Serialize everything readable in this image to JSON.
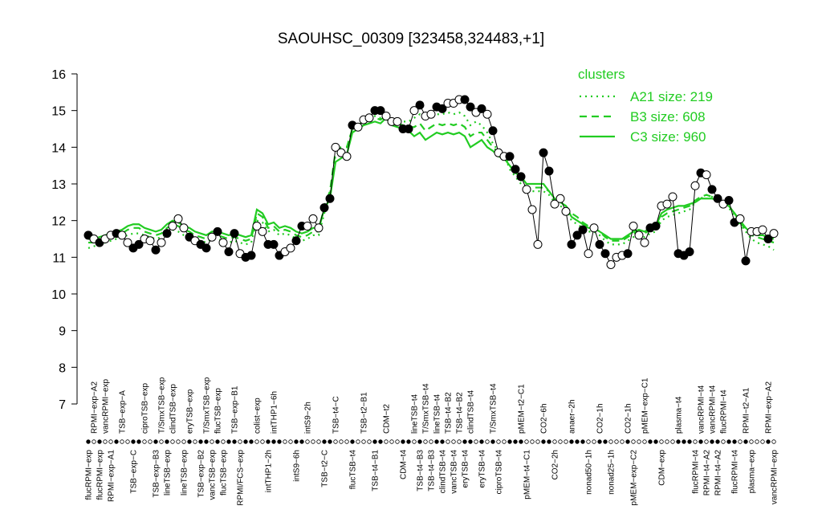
{
  "chart_data": {
    "type": "line",
    "title": "SAOUHSC_00309 [323458,324483,+1]",
    "ylim": [
      7,
      16
    ],
    "yticks": [
      7,
      8,
      9,
      10,
      11,
      12,
      13,
      14,
      15,
      16
    ],
    "legend_title": "clusters",
    "legend_position": "top-right",
    "categories": [
      "flucRPMI−exp",
      "RPMI−exp−A2",
      "flucRPMI−exp",
      "vancRPMI−exp",
      "RPMI−exp−A1",
      null,
      "TSB−exp−A",
      null,
      "TSB−exp−C",
      null,
      "ciproTSB−exp",
      null,
      "TSB−exp−B3",
      "T/SmxTSB−exp",
      "lineTSB−exp",
      "clindTSB−exp",
      null,
      "lineTSB−exp",
      "eryTSB−exp",
      null,
      "TSB−exp−B2",
      "T/SmxTSB−exp",
      "vancTSB−exp",
      "flucTSB−exp",
      "flucTSB−exp",
      null,
      "TSB−exp−B1",
      "RPMI/FCS−exp",
      null,
      null,
      "colist−exp",
      null,
      "intTHP1−2h",
      "intTHP1−6h",
      null,
      null,
      null,
      "intS9−6h",
      null,
      "intS9−2h",
      null,
      null,
      "TSB−t2−C",
      null,
      "TSB−t4−C",
      null,
      null,
      "flucTSB−t4",
      null,
      "TSB−t2−B1",
      null,
      "TSB−t4−B1",
      null,
      "CDM−t2",
      null,
      null,
      "CDM−t4",
      null,
      "lineTSB−t4",
      "TSB−t4−B3",
      "T/SmxTSB−t4",
      "TSB−t4−B3",
      "lineTSB−t4",
      "clindTSB−t4",
      "TSB−t4−B2",
      "vancTSB−t4",
      "TSB−t4−B2",
      "eryTSB−t4",
      "clindTSB−t4",
      null,
      "eryTSB−t4",
      null,
      "T/SmxTSB−t4",
      "ciproTSB−t4",
      null,
      null,
      null,
      "pMEM−t2−C1",
      "pMEM−t4−C1",
      null,
      null,
      "CO2−6h",
      null,
      "CO2−2h",
      null,
      null,
      "anaer−2h",
      null,
      null,
      "nonad50−1h",
      null,
      "CO2−1h",
      null,
      "nonad25−1h",
      null,
      null,
      "CO2−1h",
      "pMEM−exp−C2",
      null,
      "pMEM−exp−C1",
      null,
      null,
      "CDM−exp",
      null,
      null,
      "plasma−t4",
      null,
      null,
      "flucRPMI−t4",
      "vancRPMI−t4",
      "RPMI−t4−A2",
      "vancRPMI−t4",
      "RPMI−t4−A2",
      "flucRPMI−t4",
      null,
      "flucRPMI−t4",
      null,
      "RPMI−t2−A1",
      "plasma−exp",
      null,
      null,
      "RPMI−exp−A2",
      "vancRPMI−exp"
    ],
    "observed": {
      "color": "#000000",
      "values": [
        11.6,
        11.5,
        11.4,
        11.5,
        11.6,
        11.65,
        11.6,
        11.4,
        11.25,
        11.35,
        11.5,
        11.45,
        11.2,
        11.4,
        11.65,
        11.85,
        12.05,
        11.8,
        11.55,
        11.45,
        11.35,
        11.25,
        11.55,
        11.7,
        11.4,
        11.15,
        11.65,
        11.1,
        11.0,
        11.05,
        11.85,
        11.7,
        11.35,
        11.35,
        11.05,
        11.15,
        11.25,
        11.45,
        11.85,
        11.85,
        12.05,
        11.8,
        12.35,
        12.6,
        14.0,
        13.85,
        13.75,
        14.6,
        14.55,
        14.75,
        14.8,
        15.0,
        15.0,
        14.85,
        14.7,
        14.7,
        14.5,
        14.5,
        15.0,
        15.15,
        14.85,
        14.9,
        15.1,
        15.05,
        15.2,
        15.2,
        15.3,
        15.3,
        15.1,
        14.95,
        15.05,
        14.9,
        14.45,
        13.85,
        13.75,
        13.75,
        13.4,
        13.2,
        12.85,
        12.3,
        11.35,
        13.85,
        13.35,
        12.45,
        12.6,
        12.25,
        11.35,
        11.6,
        11.75,
        11.1,
        11.8,
        11.35,
        11.1,
        10.8,
        11.0,
        11.05,
        11.1,
        11.85,
        11.6,
        11.4,
        11.8,
        11.85,
        12.4,
        12.45,
        12.65,
        11.1,
        11.05,
        11.15,
        12.95,
        13.3,
        13.25,
        12.85,
        12.6,
        12.45,
        12.55,
        11.95,
        12.05,
        10.9,
        11.7,
        11.7,
        11.75,
        11.5,
        11.65
      ],
      "marker_fills": [
        "#000000",
        "#ffffff",
        "#000000",
        "#ffffff",
        "#ffffff",
        "#000000",
        "#ffffff",
        "#ffffff",
        "#000000",
        "#000000",
        "#ffffff",
        "#ffffff",
        "#000000",
        "#ffffff",
        "#000000",
        "#ffffff",
        "#ffffff",
        "#ffffff",
        "#000000",
        "#ffffff",
        "#000000",
        "#000000",
        "#ffffff",
        "#000000",
        "#ffffff",
        "#000000",
        "#000000",
        "#ffffff",
        "#000000",
        "#000000",
        "#ffffff",
        "#ffffff",
        "#000000",
        "#000000",
        "#000000",
        "#ffffff",
        "#ffffff",
        "#000000",
        "#000000",
        "#ffffff",
        "#ffffff",
        "#ffffff",
        "#000000",
        "#000000",
        "#ffffff",
        "#ffffff",
        "#ffffff",
        "#000000",
        "#ffffff",
        "#ffffff",
        "#ffffff",
        "#000000",
        "#000000",
        "#ffffff",
        "#ffffff",
        "#ffffff",
        "#000000",
        "#000000",
        "#ffffff",
        "#000000",
        "#ffffff",
        "#ffffff",
        "#000000",
        "#000000",
        "#ffffff",
        "#ffffff",
        "#ffffff",
        "#000000",
        "#000000",
        "#ffffff",
        "#000000",
        "#ffffff",
        "#000000",
        "#ffffff",
        "#ffffff",
        "#000000",
        "#000000",
        "#000000",
        "#ffffff",
        "#ffffff",
        "#ffffff",
        "#000000",
        "#000000",
        "#ffffff",
        "#ffffff",
        "#ffffff",
        "#000000",
        "#000000",
        "#000000",
        "#ffffff",
        "#ffffff",
        "#000000",
        "#000000",
        "#ffffff",
        "#ffffff",
        "#ffffff",
        "#000000",
        "#ffffff",
        "#ffffff",
        "#ffffff",
        "#000000",
        "#000000",
        "#ffffff",
        "#ffffff",
        "#ffffff",
        "#000000",
        "#000000",
        "#000000",
        "#ffffff",
        "#000000",
        "#ffffff",
        "#000000",
        "#000000",
        "#ffffff",
        "#000000",
        "#000000",
        "#ffffff",
        "#000000",
        "#ffffff",
        "#ffffff",
        "#ffffff",
        "#000000",
        "#ffffff"
      ]
    },
    "series": [
      {
        "name": "A21 size: 219",
        "color": "#22cc22",
        "dash": "dotted",
        "values": [
          11.25,
          11.3,
          11.35,
          11.4,
          11.45,
          11.5,
          11.55,
          11.6,
          11.65,
          11.65,
          11.6,
          11.55,
          11.5,
          11.55,
          11.65,
          11.75,
          11.7,
          11.6,
          11.55,
          11.5,
          11.45,
          11.4,
          11.5,
          11.5,
          11.45,
          11.4,
          11.45,
          11.4,
          11.35,
          11.4,
          12.0,
          11.95,
          11.7,
          11.75,
          11.6,
          11.65,
          11.6,
          11.5,
          11.45,
          11.5,
          11.6,
          11.6,
          12.2,
          12.7,
          13.8,
          13.9,
          14.0,
          14.5,
          14.6,
          14.7,
          14.8,
          14.85,
          14.8,
          14.9,
          14.75,
          14.7,
          14.7,
          14.7,
          14.8,
          14.9,
          14.75,
          14.85,
          14.9,
          14.9,
          14.95,
          14.9,
          14.95,
          14.85,
          14.6,
          14.7,
          14.6,
          14.4,
          14.1,
          13.9,
          13.8,
          13.4,
          13.2,
          13.0,
          12.8,
          12.8,
          12.8,
          12.8,
          12.7,
          12.5,
          12.4,
          12.3,
          12.0,
          11.9,
          11.8,
          11.7,
          11.7,
          11.6,
          11.45,
          11.35,
          11.35,
          11.35,
          11.45,
          11.55,
          11.6,
          11.55,
          11.65,
          11.7,
          12.0,
          12.1,
          12.15,
          12.2,
          12.25,
          12.3,
          12.5,
          12.6,
          12.7,
          12.65,
          12.6,
          12.5,
          12.35,
          12.1,
          11.9,
          11.7,
          11.5,
          11.4,
          11.35,
          11.3,
          11.2
        ]
      },
      {
        "name": "B3 size: 608",
        "color": "#22cc22",
        "dash": "dashed",
        "values": [
          11.4,
          11.4,
          11.45,
          11.5,
          11.55,
          11.6,
          11.65,
          11.75,
          11.8,
          11.8,
          11.7,
          11.65,
          11.6,
          11.65,
          11.8,
          11.9,
          11.85,
          11.75,
          11.7,
          11.6,
          11.55,
          11.5,
          11.6,
          11.6,
          11.55,
          11.5,
          11.55,
          11.5,
          11.45,
          11.5,
          12.2,
          12.1,
          11.8,
          11.85,
          11.7,
          11.75,
          11.7,
          11.6,
          11.55,
          11.6,
          11.7,
          11.7,
          12.4,
          12.8,
          13.9,
          14.0,
          14.0,
          14.5,
          14.6,
          14.7,
          14.75,
          14.8,
          14.75,
          14.85,
          14.7,
          14.65,
          14.6,
          14.55,
          14.55,
          14.65,
          14.45,
          14.55,
          14.65,
          14.6,
          14.65,
          14.6,
          14.65,
          14.55,
          14.3,
          14.4,
          14.4,
          14.2,
          14.0,
          13.85,
          13.8,
          13.5,
          13.3,
          13.1,
          12.9,
          12.9,
          12.9,
          12.9,
          12.8,
          12.6,
          12.5,
          12.4,
          12.2,
          12.1,
          11.95,
          11.85,
          11.8,
          11.7,
          11.55,
          11.45,
          11.45,
          11.45,
          11.55,
          11.65,
          11.7,
          11.65,
          11.75,
          11.8,
          12.1,
          12.2,
          12.25,
          12.3,
          12.35,
          12.4,
          12.55,
          12.65,
          12.7,
          12.65,
          12.6,
          12.5,
          12.4,
          12.2,
          11.95,
          11.75,
          11.6,
          11.55,
          11.5,
          11.45,
          11.4
        ]
      },
      {
        "name": "C3 size: 960",
        "color": "#22cc22",
        "dash": "solid",
        "values": [
          11.5,
          11.5,
          11.55,
          11.6,
          11.65,
          11.7,
          11.75,
          11.85,
          11.9,
          11.9,
          11.8,
          11.75,
          11.7,
          11.75,
          11.9,
          12.0,
          11.95,
          11.85,
          11.8,
          11.7,
          11.65,
          11.6,
          11.7,
          11.7,
          11.65,
          11.6,
          11.65,
          11.6,
          11.55,
          11.6,
          12.3,
          12.2,
          11.9,
          11.95,
          11.8,
          11.85,
          11.8,
          11.7,
          11.65,
          11.7,
          11.8,
          11.8,
          12.3,
          12.6,
          13.6,
          13.7,
          13.8,
          14.4,
          14.5,
          14.6,
          14.65,
          14.7,
          14.65,
          14.8,
          14.6,
          14.55,
          14.5,
          14.45,
          14.3,
          14.4,
          14.2,
          14.3,
          14.4,
          14.35,
          14.4,
          14.35,
          14.4,
          14.3,
          14.0,
          14.1,
          14.2,
          14.0,
          13.9,
          13.75,
          13.7,
          13.5,
          13.3,
          13.2,
          13.0,
          13.0,
          13.0,
          13.0,
          12.8,
          12.6,
          12.5,
          12.4,
          12.1,
          12.0,
          11.9,
          11.8,
          11.8,
          11.7,
          11.6,
          11.5,
          11.5,
          11.5,
          11.6,
          11.7,
          11.75,
          11.7,
          11.8,
          11.85,
          12.2,
          12.3,
          12.35,
          12.4,
          12.4,
          12.45,
          12.5,
          12.6,
          12.6,
          12.6,
          12.55,
          12.45,
          12.4,
          12.2,
          12.0,
          11.8,
          11.65,
          11.6,
          11.6,
          11.55,
          11.5
        ]
      }
    ]
  }
}
